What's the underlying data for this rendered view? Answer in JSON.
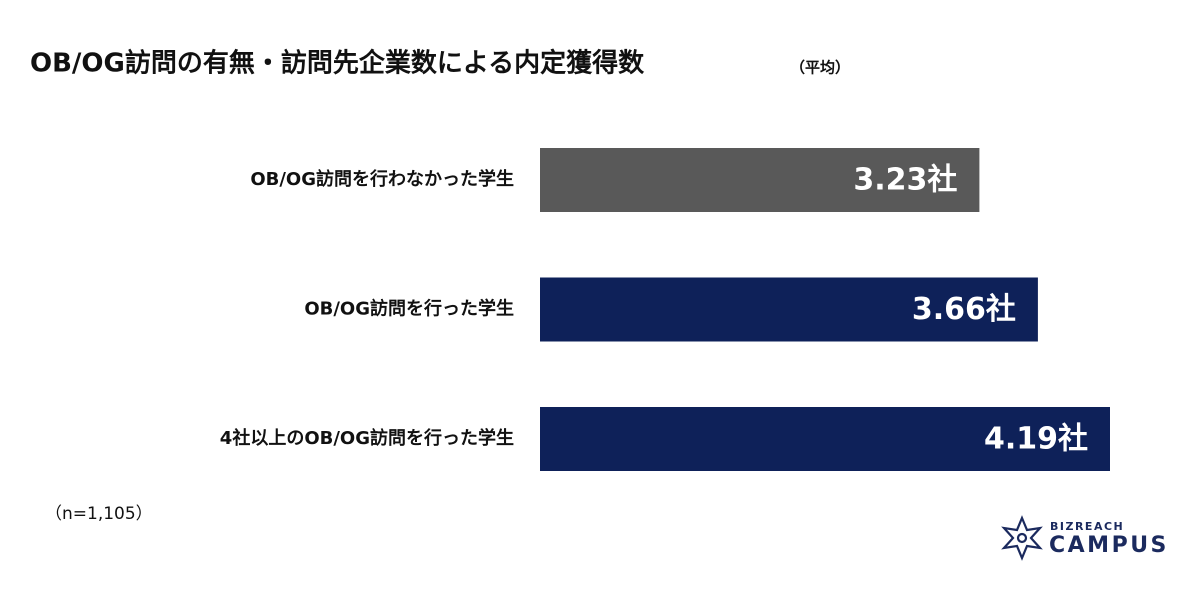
{
  "chart_data": {
    "type": "hbar",
    "title": "OB/OG訪問の有無・訪問先企業数による内定獲得数",
    "subtitle": "（平均）",
    "categories": [
      "OB/OG訪問を行わなかった学生",
      "OB/OG訪問を行った学生",
      "4社以上のOB/OG訪問を行った学生"
    ],
    "values": [
      3.23,
      3.66,
      4.19
    ],
    "value_labels": [
      "3.23社",
      "3.66社",
      "4.19社"
    ],
    "colors": [
      "#595959",
      "#0e2159",
      "#0e2159"
    ],
    "note": "（n=1,105）"
  },
  "logo": {
    "top": "BIZREACH",
    "bottom": "CAMPUS"
  }
}
